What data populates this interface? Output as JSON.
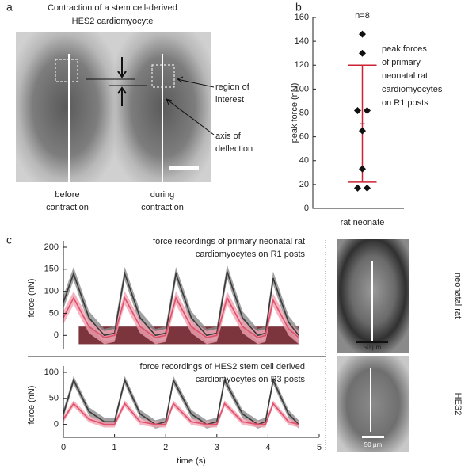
{
  "panel_a": {
    "letter": "a",
    "title": [
      "Contraction of a stem cell-derived",
      "HES2 cardiomyocyte"
    ],
    "roi_label": [
      "region of",
      "interest"
    ],
    "axis_label": [
      "axis of",
      "deflection"
    ],
    "before_label": [
      "before",
      "contraction"
    ],
    "during_label": [
      "during",
      "contraction"
    ]
  },
  "panel_c": {
    "letter": "c",
    "images": [
      {
        "label": "neonatal rat",
        "scale": "50 µm"
      },
      {
        "label": "HES2",
        "scale": "50 µm"
      }
    ]
  },
  "chart_data": [
    {
      "type": "scatter",
      "panel_label": "b",
      "title": "n=8",
      "ylabel": "peak force (nN)",
      "categories": [
        "rat neonate"
      ],
      "values": [
        146,
        130,
        82,
        82,
        65,
        33,
        17,
        17
      ],
      "mean": 71,
      "error": 49,
      "color": "#111111",
      "error_color": "#cc2233",
      "annotation": [
        "peak forces",
        "of primary",
        "neonatal rat",
        "cardiomyocytes",
        "on R1 posts"
      ],
      "ylim": [
        0,
        160
      ],
      "yticks": [
        0,
        20,
        40,
        60,
        80,
        100,
        120,
        140,
        160
      ]
    },
    {
      "type": "line",
      "title": [
        "force recordings of primary neonatal rat",
        "cardiomyocytes on R1 posts"
      ],
      "ylabel": "force (nN)",
      "x": [
        0,
        0.2,
        0.5,
        0.8,
        1.0,
        1.2,
        1.5,
        1.8,
        2.0,
        2.2,
        2.5,
        2.8,
        3.0,
        3.2,
        3.5,
        3.8,
        3.95,
        4.1,
        4.4,
        4.6
      ],
      "series": [
        {
          "color": "#3a3a3a",
          "band_color": "#8a8a8a",
          "band": 15,
          "values": [
            75,
            140,
            40,
            0,
            5,
            140,
            40,
            0,
            5,
            140,
            40,
            0,
            5,
            145,
            40,
            0,
            5,
            130,
            30,
            0
          ]
        },
        {
          "color": "#e0506a",
          "band_color": "#f2a3b3",
          "band": 15,
          "values": [
            40,
            85,
            20,
            -5,
            0,
            85,
            20,
            -5,
            0,
            85,
            20,
            -5,
            0,
            85,
            20,
            -5,
            0,
            80,
            15,
            -5
          ]
        }
      ],
      "baseline_band": {
        "color": "#6e1e28",
        "xlim": [
          0.3,
          4.6
        ],
        "ylim": [
          -20,
          20
        ]
      },
      "xlim": [
        0,
        5
      ],
      "ylim": [
        -30,
        200
      ],
      "yticks": [
        0,
        50,
        100,
        150,
        200
      ]
    },
    {
      "type": "line",
      "title": [
        "force recordings of HES2 stem cell derived",
        "cardiomyocytes on R3 posts"
      ],
      "ylabel": "force (nN)",
      "xlabel": "time (s)",
      "x": [
        0,
        0.2,
        0.5,
        0.8,
        1.0,
        1.2,
        1.5,
        1.8,
        2.0,
        2.15,
        2.5,
        2.8,
        3.0,
        3.15,
        3.5,
        3.8,
        3.95,
        4.1,
        4.4,
        4.6
      ],
      "series": [
        {
          "color": "#3a3a3a",
          "band_color": "#8a8a8a",
          "band": 8,
          "values": [
            20,
            85,
            25,
            5,
            5,
            85,
            20,
            0,
            5,
            85,
            20,
            0,
            5,
            85,
            20,
            0,
            5,
            85,
            20,
            0
          ]
        },
        {
          "color": "#e0506a",
          "band_color": "#f2a3b3",
          "band": 6,
          "values": [
            10,
            40,
            10,
            0,
            0,
            40,
            5,
            0,
            0,
            40,
            5,
            0,
            0,
            40,
            5,
            0,
            0,
            40,
            5,
            0
          ]
        }
      ],
      "xlim": [
        0,
        5
      ],
      "xticks": [
        0,
        1,
        2,
        3,
        4,
        5
      ],
      "ylim": [
        -25,
        100
      ],
      "yticks": [
        0,
        50,
        100
      ]
    }
  ]
}
